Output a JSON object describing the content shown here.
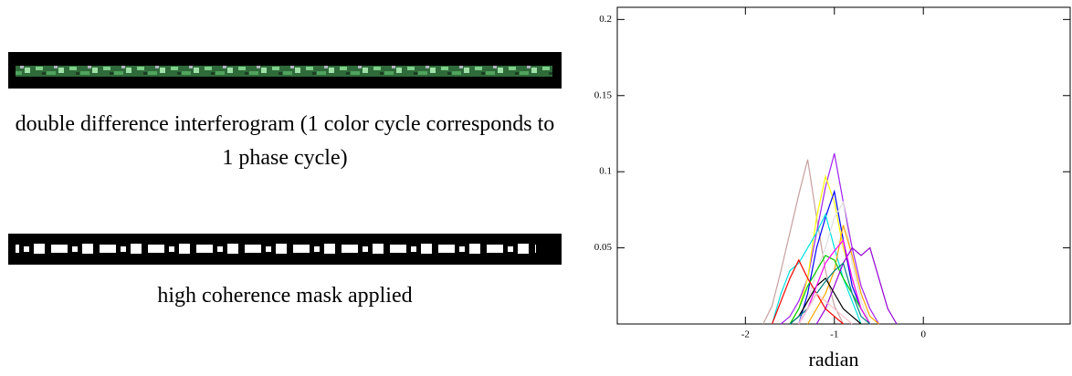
{
  "panels": [
    {
      "caption": "double difference interferogram (1 color cycle corresponds to 1 phase cycle)"
    },
    {
      "caption": "high coherence mask applied"
    }
  ],
  "chart_data": {
    "type": "line",
    "x_label": "radian",
    "x": [
      -1.8,
      -1.7,
      -1.6,
      -1.5,
      -1.4,
      -1.3,
      -1.2,
      -1.1,
      -1.0,
      -0.9,
      -0.8,
      -0.7,
      -0.6,
      -0.5,
      -0.4,
      -0.3
    ],
    "series": [
      {
        "color": "#c8a0a0",
        "values": [
          0,
          0.012,
          0.035,
          0.06,
          0.085,
          0.108,
          0.07,
          0.035,
          0.012,
          0,
          null,
          null,
          null,
          null,
          null,
          null
        ]
      },
      {
        "color": "#a020f0",
        "values": [
          null,
          null,
          0,
          0.005,
          0.015,
          0.03,
          0.06,
          0.09,
          0.112,
          0.08,
          0.05,
          0.025,
          0.01,
          0,
          null,
          null
        ]
      },
      {
        "color": "#ffff00",
        "values": [
          null,
          null,
          null,
          0,
          0.01,
          0.03,
          0.07,
          0.097,
          0.08,
          0.05,
          0.03,
          0.01,
          0,
          null,
          null,
          null
        ]
      },
      {
        "color": "#0000ff",
        "values": [
          null,
          null,
          null,
          null,
          0,
          0.02,
          0.05,
          0.07,
          0.087,
          0.055,
          0.025,
          0.01,
          0,
          null,
          null,
          null
        ]
      },
      {
        "color": "#00e0e0",
        "values": [
          null,
          0,
          0.02,
          0.035,
          0.04,
          0.05,
          0.06,
          0.072,
          0.05,
          0.03,
          0.015,
          0,
          null,
          null,
          null,
          null
        ]
      },
      {
        "color": "#dddddd",
        "values": [
          null,
          null,
          null,
          null,
          0,
          0.015,
          0.035,
          0.05,
          0.07,
          0.08,
          0.04,
          0.015,
          0,
          null,
          null,
          null
        ]
      },
      {
        "color": "#ffa500",
        "values": [
          null,
          null,
          null,
          null,
          null,
          0,
          0.01,
          0.02,
          0.035,
          0.065,
          0.045,
          0.02,
          0.005,
          0,
          null,
          null
        ]
      },
      {
        "color": "#00cc00",
        "values": [
          null,
          null,
          null,
          0,
          0.01,
          0.025,
          0.035,
          0.045,
          0.042,
          0.03,
          0.02,
          0.01,
          0,
          null,
          null,
          null
        ]
      },
      {
        "color": "#9400d3",
        "values": [
          null,
          null,
          null,
          null,
          null,
          null,
          0,
          0.01,
          0.025,
          0.04,
          0.05,
          0.045,
          0.05,
          0.03,
          0.01,
          0
        ]
      },
      {
        "color": "#ff0000",
        "values": [
          null,
          0,
          0.015,
          0.03,
          0.042,
          0.03,
          0.02,
          0.01,
          0.005,
          0,
          null,
          null,
          null,
          null,
          null,
          null
        ]
      },
      {
        "color": "#000000",
        "values": [
          null,
          null,
          null,
          0,
          0.005,
          0.015,
          0.025,
          0.03,
          0.02,
          0.01,
          0.005,
          0,
          null,
          null,
          null,
          null
        ]
      },
      {
        "color": "#ff00ff",
        "values": [
          null,
          null,
          null,
          null,
          0,
          0.01,
          0.025,
          0.04,
          0.048,
          0.055,
          0.03,
          0.01,
          0,
          null,
          null,
          null
        ]
      },
      {
        "color": "#008080",
        "values": [
          null,
          null,
          null,
          0,
          0.005,
          0.01,
          0.02,
          0.028,
          0.035,
          0.04,
          0.02,
          0.005,
          0,
          null,
          null,
          null
        ]
      },
      {
        "color": "#ffc0cb",
        "values": [
          null,
          null,
          null,
          null,
          0,
          0.01,
          0.02,
          0.015,
          0.01,
          0.005,
          0,
          null,
          null,
          null,
          null,
          null
        ]
      }
    ],
    "xlim": [
      -3.44,
      1.65
    ],
    "xticks": [
      -2,
      -1,
      0
    ],
    "ylim": [
      0,
      0.208
    ],
    "yticks": [
      0.05,
      0.1,
      0.15,
      0.2
    ],
    "grid": false
  }
}
